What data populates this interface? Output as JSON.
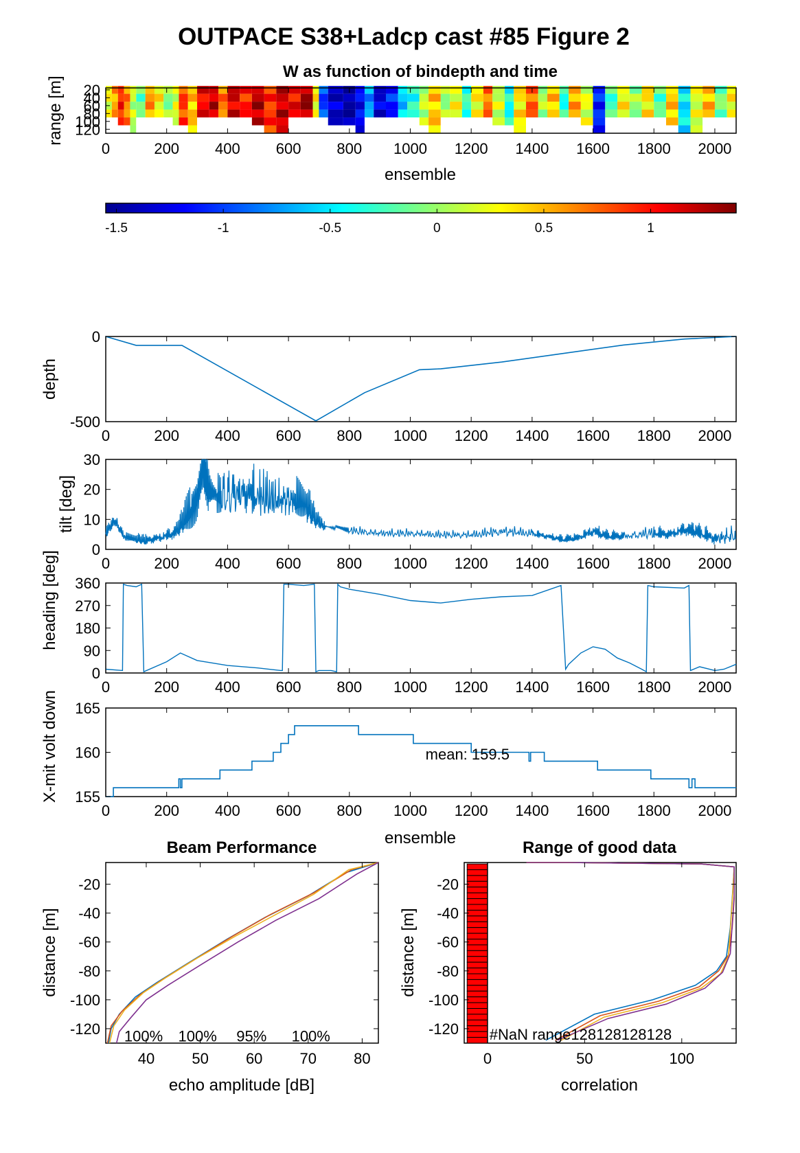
{
  "figure": {
    "title": "OUTPACE S38+Ladcp cast #85 Figure 2",
    "colormap_stops": [
      "#00008f",
      "#0000ff",
      "#0080ff",
      "#00ffff",
      "#80ff80",
      "#ffff00",
      "#ff8000",
      "#ff0000",
      "#800000"
    ]
  },
  "chart_data": [
    {
      "id": "w_image",
      "type": "heatmap",
      "title": "W as function of bindepth and time",
      "xlabel": "ensemble",
      "ylabel": "range [m]",
      "xlim": [
        0,
        2070
      ],
      "ylim": [
        15,
        130
      ],
      "xticks": [
        0,
        200,
        400,
        600,
        800,
        1000,
        1200,
        1400,
        1600,
        1800,
        2000
      ],
      "yticks": [
        20,
        40,
        60,
        80,
        100,
        120
      ],
      "ytick_labels": [
        "20",
        "40",
        "60",
        "80",
        "100",
        "120"
      ],
      "bins": [
        20,
        40,
        60,
        80,
        100,
        120
      ],
      "segments": [
        [
          0,
          20,
          0.25
        ],
        [
          20,
          40,
          0.55
        ],
        [
          40,
          60,
          0.95
        ],
        [
          60,
          80,
          0.65
        ],
        [
          80,
          100,
          0.1
        ],
        [
          100,
          130,
          -0.15
        ],
        [
          130,
          160,
          0.6
        ],
        [
          160,
          190,
          0.3
        ],
        [
          190,
          220,
          -0.05
        ],
        [
          220,
          240,
          0.2
        ],
        [
          240,
          270,
          0.85
        ],
        [
          270,
          300,
          0.45
        ],
        [
          300,
          340,
          1.05
        ],
        [
          340,
          370,
          1.2
        ],
        [
          370,
          400,
          0.7
        ],
        [
          400,
          440,
          1.15
        ],
        [
          440,
          480,
          0.95
        ],
        [
          480,
          520,
          1.25
        ],
        [
          520,
          560,
          0.9
        ],
        [
          560,
          600,
          1.2
        ],
        [
          600,
          640,
          1.05
        ],
        [
          640,
          680,
          1.3
        ],
        [
          680,
          700,
          0.3
        ],
        [
          700,
          730,
          -1.0
        ],
        [
          730,
          780,
          -1.35
        ],
        [
          780,
          820,
          -1.5
        ],
        [
          820,
          850,
          -1.2
        ],
        [
          850,
          880,
          -0.75
        ],
        [
          880,
          920,
          -1.3
        ],
        [
          920,
          960,
          -1.1
        ],
        [
          960,
          990,
          -0.6
        ],
        [
          990,
          1030,
          -0.35
        ],
        [
          1030,
          1060,
          0.1
        ],
        [
          1060,
          1100,
          0.45
        ],
        [
          1100,
          1130,
          0.0
        ],
        [
          1130,
          1170,
          0.25
        ],
        [
          1170,
          1200,
          -0.3
        ],
        [
          1200,
          1240,
          0.3
        ],
        [
          1240,
          1270,
          0.7
        ],
        [
          1270,
          1310,
          0.15
        ],
        [
          1310,
          1340,
          -0.4
        ],
        [
          1340,
          1380,
          0.35
        ],
        [
          1380,
          1420,
          0.75
        ],
        [
          1420,
          1450,
          0.05
        ],
        [
          1450,
          1490,
          0.45
        ],
        [
          1490,
          1520,
          -0.35
        ],
        [
          1520,
          1560,
          0.55
        ],
        [
          1560,
          1600,
          0.2
        ],
        [
          1600,
          1640,
          -1.1
        ],
        [
          1640,
          1680,
          -0.25
        ],
        [
          1680,
          1720,
          0.3
        ],
        [
          1720,
          1760,
          0.0
        ],
        [
          1760,
          1800,
          0.35
        ],
        [
          1800,
          1840,
          -0.2
        ],
        [
          1840,
          1880,
          0.45
        ],
        [
          1880,
          1920,
          -0.5
        ],
        [
          1920,
          1960,
          0.2
        ],
        [
          1960,
          2000,
          0.5
        ],
        [
          2000,
          2040,
          -0.1
        ],
        [
          2040,
          2070,
          0.3
        ]
      ]
    },
    {
      "id": "colorbar",
      "type": "heatmap",
      "clim": [
        -1.55,
        1.4
      ],
      "ticks": [
        -1.5,
        -1,
        -0.5,
        0,
        0.5,
        1
      ],
      "tick_labels": [
        "-1.5",
        "-1",
        "-0.5",
        "0",
        "0.5",
        "1"
      ]
    },
    {
      "id": "depth",
      "type": "line",
      "ylabel": "depth",
      "xlim": [
        0,
        2070
      ],
      "ylim": [
        -500,
        0
      ],
      "xticks": [
        0,
        200,
        400,
        600,
        800,
        1000,
        1200,
        1400,
        1600,
        1800,
        2000
      ],
      "yticks": [
        -500,
        0
      ],
      "ytick_labels": [
        "-500",
        "0"
      ],
      "x": [
        0,
        100,
        250,
        690,
        850,
        1030,
        1100,
        1300,
        1500,
        1700,
        1900,
        2070
      ],
      "y": [
        0,
        -52,
        -52,
        -495,
        -330,
        -195,
        -190,
        -150,
        -100,
        -50,
        -15,
        0
      ]
    },
    {
      "id": "tilt",
      "type": "line",
      "ylabel": "tilt [deg]",
      "xlim": [
        0,
        2070
      ],
      "ylim": [
        0,
        30
      ],
      "xticks": [
        0,
        200,
        400,
        600,
        800,
        1000,
        1200,
        1400,
        1600,
        1800,
        2000
      ],
      "yticks": [
        0,
        10,
        20,
        30
      ],
      "ytick_labels": [
        "0",
        "10",
        "20",
        "30"
      ],
      "x": [
        0,
        30,
        60,
        100,
        130,
        180,
        230,
        260,
        300,
        320,
        340,
        380,
        450,
        500,
        560,
        620,
        660,
        690,
        720,
        800,
        900,
        1000,
        1100,
        1200,
        1300,
        1400,
        1450,
        1500,
        1550,
        1600,
        1650,
        1700,
        1800,
        1850,
        1900,
        1950,
        2000,
        2070
      ],
      "y": [
        5,
        9,
        4,
        3,
        2.5,
        3.5,
        5,
        9,
        14,
        25,
        17,
        16,
        17,
        16,
        15,
        15,
        13,
        9,
        7,
        6,
        5,
        5,
        4.5,
        4.5,
        5.5,
        5,
        4,
        3,
        3.5,
        5.5,
        4,
        4,
        5,
        4.5,
        6,
        5,
        3,
        4
      ],
      "noise": [
        1.5,
        1.5,
        1,
        1,
        1,
        1.2,
        1.5,
        3,
        6,
        8,
        6,
        4,
        5,
        5,
        4,
        4,
        4,
        2,
        1.2,
        0.8,
        0.8,
        0.8,
        0.8,
        0.8,
        1.2,
        0.8,
        0.8,
        0.8,
        0.8,
        1.5,
        1,
        1,
        1.2,
        1.2,
        1.5,
        1.5,
        1.5,
        2
      ]
    },
    {
      "id": "heading",
      "type": "line",
      "ylabel": "heading [deg]",
      "xlim": [
        0,
        2070
      ],
      "ylim": [
        0,
        360
      ],
      "xticks": [
        0,
        200,
        400,
        600,
        800,
        1000,
        1200,
        1400,
        1600,
        1800,
        2000
      ],
      "yticks": [
        0,
        90,
        180,
        270,
        360
      ],
      "ytick_labels": [
        "0",
        "90",
        "180",
        "270",
        "360"
      ],
      "x": [
        0,
        55,
        58,
        70,
        100,
        118,
        125,
        200,
        245,
        300,
        400,
        500,
        575,
        580,
        585,
        600,
        650,
        685,
        690,
        700,
        740,
        758,
        762,
        770,
        800,
        900,
        1000,
        1100,
        1200,
        1300,
        1400,
        1495,
        1510,
        1520,
        1560,
        1600,
        1640,
        1680,
        1720,
        1760,
        1775,
        1780,
        1800,
        1900,
        1915,
        1920,
        1950,
        2000,
        2030,
        2070
      ],
      "y": [
        15,
        10,
        355,
        350,
        345,
        355,
        5,
        45,
        80,
        50,
        30,
        20,
        10,
        10,
        355,
        355,
        350,
        355,
        5,
        10,
        10,
        5,
        355,
        345,
        335,
        315,
        290,
        280,
        295,
        305,
        310,
        350,
        15,
        35,
        80,
        105,
        95,
        60,
        40,
        15,
        5,
        350,
        345,
        340,
        350,
        10,
        25,
        10,
        15,
        35
      ]
    },
    {
      "id": "volt",
      "type": "line",
      "ylabel": "X-mit volt down",
      "xlabel": "ensemble",
      "xlim": [
        0,
        2070
      ],
      "ylim": [
        155,
        165
      ],
      "xticks": [
        0,
        200,
        400,
        600,
        800,
        1000,
        1200,
        1400,
        1600,
        1800,
        2000
      ],
      "yticks": [
        155,
        160,
        165
      ],
      "ytick_labels": [
        "155",
        "160",
        "165"
      ],
      "annotation": "mean: 159.5",
      "annotation_at": [
        1050,
        159.2
      ],
      "x": [
        0,
        25,
        25,
        240,
        240,
        245,
        245,
        250,
        250,
        375,
        375,
        480,
        480,
        550,
        550,
        575,
        575,
        600,
        600,
        620,
        620,
        670,
        670,
        830,
        830,
        1010,
        1010,
        1200,
        1200,
        1390,
        1390,
        1395,
        1395,
        1405,
        1405,
        1440,
        1440,
        1615,
        1615,
        1790,
        1790,
        1915,
        1915,
        1925,
        1925,
        1935,
        1935,
        1945,
        1945,
        2070
      ],
      "y": [
        155,
        155,
        156,
        156,
        157,
        157,
        156,
        156,
        157,
        157,
        158,
        158,
        159,
        159,
        160,
        160,
        161,
        161,
        162,
        162,
        163,
        163,
        163,
        163,
        162,
        162,
        161,
        161,
        160,
        160,
        159,
        159,
        160,
        160,
        160,
        160,
        159,
        159,
        158,
        158,
        157,
        157,
        156,
        156,
        157,
        157,
        156,
        156,
        156,
        156
      ]
    },
    {
      "id": "beam",
      "type": "line",
      "title": "Beam Performance",
      "xlabel": "echo amplitude [dB]",
      "ylabel": "distance [m]",
      "xlim": [
        32.5,
        83
      ],
      "ylim": [
        -130,
        -5
      ],
      "xticks": [
        40,
        50,
        60,
        70,
        80
      ],
      "yticks": [
        -20,
        -40,
        -60,
        -80,
        -100,
        -120
      ],
      "ytick_labels": [
        "-20",
        "-40",
        "-60",
        "-80",
        "-100",
        "-120"
      ],
      "annotations": [
        "100%",
        "100%",
        "95%",
        "100%"
      ],
      "annotation_x": [
        39.5,
        49.5,
        59.5,
        70.5
      ],
      "annotation_y": -123,
      "series": [
        {
          "color": "#0072bd",
          "x": [
            33,
            33.5,
            35,
            38,
            42,
            48,
            55,
            62,
            70,
            77,
            83
          ],
          "y": [
            -130,
            -120,
            -110,
            -98,
            -88,
            -74,
            -58,
            -43,
            -28,
            -12,
            -5
          ]
        },
        {
          "color": "#d95319",
          "x": [
            32.8,
            33.5,
            35.5,
            39,
            43,
            49,
            56,
            63,
            71,
            78,
            83
          ],
          "y": [
            -130,
            -118,
            -108,
            -96,
            -86,
            -72,
            -56,
            -41,
            -26,
            -10,
            -5
          ]
        },
        {
          "color": "#edb120",
          "x": [
            33.2,
            34,
            36,
            39.5,
            43.5,
            49.5,
            56.5,
            63.5,
            71,
            77.5,
            83
          ],
          "y": [
            -130,
            -118,
            -107,
            -95,
            -85,
            -71,
            -56,
            -42,
            -27,
            -10,
            -5
          ]
        },
        {
          "color": "#7e2f8e",
          "x": [
            34.5,
            35,
            37,
            40,
            44,
            50,
            57,
            64,
            72,
            79,
            83
          ],
          "y": [
            -130,
            -122,
            -113,
            -100,
            -90,
            -76,
            -60,
            -45,
            -30,
            -13,
            -5
          ]
        }
      ]
    },
    {
      "id": "range",
      "type": "line",
      "title": "Range of good data",
      "xlabel": "correlation",
      "ylabel": "distance [m]",
      "xlim": [
        -12,
        128
      ],
      "ylim": [
        -130,
        -5
      ],
      "xticks": [
        0,
        50,
        100
      ],
      "yticks": [
        -20,
        -40,
        -60,
        -80,
        -100,
        -120
      ],
      "ytick_labels": [
        "-20",
        "-40",
        "-60",
        "-80",
        "-100",
        "-120"
      ],
      "annotation": "#NaN range128128128128",
      "annotation_at": [
        1,
        -122
      ],
      "nan_bar_color": "#ff0000",
      "series": [
        {
          "color": "#0072bd",
          "x": [
            30,
            55,
            85,
            107,
            118,
            123,
            125,
            126,
            127,
            110,
            40,
            20
          ],
          "y": [
            -128,
            -110,
            -100,
            -90,
            -80,
            -70,
            -50,
            -30,
            -8,
            -6,
            -5,
            -5
          ]
        },
        {
          "color": "#d95319",
          "x": [
            35,
            58,
            88,
            109,
            119,
            124,
            126,
            127,
            127,
            110,
            40,
            20
          ],
          "y": [
            -128,
            -111,
            -101,
            -91,
            -80,
            -69,
            -50,
            -30,
            -8,
            -6,
            -5,
            -5
          ]
        },
        {
          "color": "#edb120",
          "x": [
            38,
            60,
            90,
            110,
            120,
            124,
            125,
            126,
            127,
            110,
            40,
            20
          ],
          "y": [
            -128,
            -112,
            -102,
            -92,
            -82,
            -70,
            -52,
            -32,
            -8,
            -6,
            -5,
            -5
          ]
        },
        {
          "color": "#7e2f8e",
          "x": [
            36,
            62,
            92,
            112,
            121,
            125,
            126,
            127,
            127,
            110,
            40,
            20
          ],
          "y": [
            -128,
            -113,
            -103,
            -92,
            -81,
            -68,
            -48,
            -28,
            -8,
            -6,
            -5,
            -5
          ]
        }
      ]
    }
  ]
}
